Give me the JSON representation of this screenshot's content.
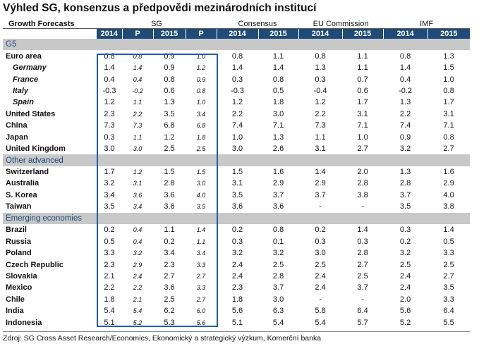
{
  "title": "Výhled SG, konsenzus a předpovědi mezinárodních institucí",
  "header": {
    "label": "Growth Forecasts",
    "groups": [
      "SG",
      "Consensus",
      "EU Commission",
      "IMF"
    ],
    "sub": [
      "2014",
      "P",
      "2015",
      "P",
      "2014",
      "2015",
      "2014",
      "2015",
      "2014",
      "2015"
    ]
  },
  "rows": [
    {
      "type": "section",
      "label": "G5"
    },
    {
      "label": "Euro area",
      "v": [
        "0.8",
        "0.8",
        "0.9",
        "1.0",
        "0.8",
        "1.1",
        "0.8",
        "1.1",
        "0.8",
        "1.3"
      ]
    },
    {
      "label": "Germany",
      "indent": true,
      "v": [
        "1.4",
        "1.4",
        "0.9",
        "1.2",
        "1.4",
        "1.4",
        "1.3",
        "1.1",
        "1.4",
        "1.5"
      ]
    },
    {
      "label": "France",
      "indent": true,
      "v": [
        "0.4",
        "0.4",
        "0.8",
        "0.9",
        "0.3",
        "0.8",
        "0.3",
        "0.7",
        "0.4",
        "1.0"
      ]
    },
    {
      "label": "Italy",
      "indent": true,
      "v": [
        "-0.3",
        "-0.2",
        "0.6",
        "0.8",
        "-0.3",
        "0.5",
        "-0.4",
        "0.6",
        "-0.2",
        "0.8"
      ]
    },
    {
      "label": "Spain",
      "indent": true,
      "v": [
        "1.2",
        "1.1",
        "1.3",
        "1.0",
        "1.2",
        "1.8",
        "1.2",
        "1.7",
        "1.3",
        "1.7"
      ]
    },
    {
      "label": "United States",
      "v": [
        "2.3",
        "2.2",
        "3.5",
        "3.4",
        "2.2",
        "3.0",
        "2.2",
        "3.1",
        "2.2",
        "3.1"
      ]
    },
    {
      "label": "China",
      "v": [
        "7.3",
        "7.3",
        "6.8",
        "6.8",
        "7.4",
        "7.1",
        "7.3",
        "7.1",
        "7.4",
        "7.1"
      ]
    },
    {
      "label": "Japan",
      "v": [
        "0.3",
        "1.1",
        "1.2",
        "1.8",
        "1.0",
        "1.3",
        "1.1",
        "1.0",
        "0.9",
        "0.8"
      ]
    },
    {
      "label": "United Kingdom",
      "v": [
        "3.0",
        "3.0",
        "2.5",
        "2.5",
        "3.0",
        "2.6",
        "3.1",
        "2.7",
        "3.2",
        "2.7"
      ]
    },
    {
      "type": "section",
      "label": "Other advanced"
    },
    {
      "label": "Switzerland",
      "v": [
        "1.7",
        "1.2",
        "1.5",
        "1.5",
        "1.5",
        "1.6",
        "1.4",
        "2.0",
        "1.3",
        "1.6"
      ]
    },
    {
      "label": "Australia",
      "v": [
        "3.2",
        "3.1",
        "2.8",
        "3.0",
        "3.1",
        "2.9",
        "2.9",
        "2.8",
        "2.8",
        "2.9"
      ]
    },
    {
      "label": "S. Korea",
      "v": [
        "3.4",
        "3.6",
        "3.6",
        "4.0",
        "3.5",
        "3.7",
        "3.7",
        "3.8",
        "3.7",
        "4.0"
      ]
    },
    {
      "label": "Taiwan",
      "v": [
        "3.5",
        "3.4",
        "3.6",
        "3.5",
        "3.6",
        "3.6",
        "-",
        "-",
        "3.5",
        "3.8"
      ]
    },
    {
      "type": "section",
      "label": "Emerging economies"
    },
    {
      "label": "Brazil",
      "v": [
        "0.2",
        "0.4",
        "1.1",
        "1.4",
        "0.2",
        "0.8",
        "0.2",
        "1.4",
        "0.3",
        "1.4"
      ]
    },
    {
      "label": "Russia",
      "v": [
        "0.5",
        "0.4",
        "0.2",
        "1.1",
        "0.3",
        "0.1",
        "0.3",
        "0.3",
        "0.2",
        "0.5"
      ]
    },
    {
      "label": "Poland",
      "v": [
        "3.3",
        "3.2",
        "3.4",
        "3.4",
        "3.2",
        "3.2",
        "3.0",
        "2.8",
        "3.2",
        "3.3"
      ]
    },
    {
      "label": "Czech Republic",
      "v": [
        "2.3",
        "2.9",
        "2.3",
        "3.3",
        "2.4",
        "2.5",
        "2.5",
        "2.7",
        "2.5",
        "2.5"
      ]
    },
    {
      "label": "Slovakia",
      "v": [
        "2.1",
        "2.4",
        "2.7",
        "2.7",
        "2.4",
        "2.8",
        "2.4",
        "2.5",
        "2.4",
        "2.7"
      ]
    },
    {
      "label": "Mexico",
      "v": [
        "2.2",
        "2.2",
        "3.6",
        "3.3",
        "2.3",
        "3.7",
        "2.4",
        "3.7",
        "2.4",
        "3.5"
      ]
    },
    {
      "label": "Chile",
      "v": [
        "1.8",
        "2.1",
        "2.5",
        "2.7",
        "1.8",
        "3.0",
        "-",
        "-",
        "2.0",
        "3.3"
      ]
    },
    {
      "label": "India",
      "v": [
        "5.4",
        "5.4",
        "6.2",
        "6.0",
        "5.6",
        "6.3",
        "5.8",
        "6.4",
        "5.6",
        "6.4"
      ]
    },
    {
      "label": "Indonesia",
      "v": [
        "5.1",
        "5.2",
        "5.3",
        "5.6",
        "5.1",
        "5.4",
        "5.4",
        "5.7",
        "5.2",
        "5.5"
      ]
    }
  ],
  "source": "Zdroj: SG Cross Asset Research/Economics, Ekonomický a strategický výzkum, Komerční banka",
  "colors": {
    "header_bg": "#1e4b7a",
    "section_bg": "#c8c8c8",
    "sg_box": "#1e5fa8"
  }
}
